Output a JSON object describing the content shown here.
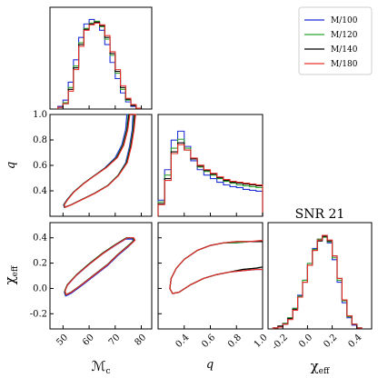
{
  "chart_data": {
    "type": "corner",
    "title": "SNR 21",
    "parameters": [
      {
        "key": "mc",
        "label": "ℳ",
        "sub": "c",
        "range": [
          45,
          84
        ],
        "ticks": [
          50,
          60,
          70,
          80
        ]
      },
      {
        "key": "q",
        "label": "q",
        "sub": "",
        "range": [
          0.2,
          1.0
        ],
        "ticks": [
          0.4,
          0.6,
          0.8,
          1.0
        ]
      },
      {
        "key": "chi",
        "label": "χ",
        "sub": "eff",
        "range": [
          -0.32,
          0.52
        ],
        "ticks": [
          -0.2,
          0.0,
          0.2,
          0.4
        ]
      }
    ],
    "series": [
      {
        "name": "M/100",
        "color": "#1f2fd6"
      },
      {
        "name": "M/120",
        "color": "#2ca02c"
      },
      {
        "name": "M/140",
        "color": "#000000"
      },
      {
        "name": "M/180",
        "color": "#e8302a"
      }
    ],
    "histograms": {
      "mc": {
        "bin_edges": [
          48,
          50,
          52,
          54,
          56,
          58,
          60,
          62,
          64,
          66,
          68,
          70,
          72,
          74,
          76,
          78,
          80
        ],
        "counts": [
          [
            0.03,
            0.1,
            0.3,
            0.55,
            0.8,
            0.95,
            1.0,
            0.96,
            0.88,
            0.72,
            0.52,
            0.34,
            0.18,
            0.08,
            0.03,
            0.01
          ],
          [
            0.02,
            0.07,
            0.24,
            0.48,
            0.74,
            0.9,
            0.96,
            0.98,
            0.92,
            0.78,
            0.6,
            0.4,
            0.22,
            0.1,
            0.04,
            0.01
          ],
          [
            0.02,
            0.06,
            0.22,
            0.46,
            0.72,
            0.89,
            0.95,
            0.97,
            0.93,
            0.8,
            0.62,
            0.42,
            0.24,
            0.11,
            0.04,
            0.01
          ],
          [
            0.02,
            0.06,
            0.2,
            0.44,
            0.7,
            0.88,
            0.94,
            0.96,
            0.94,
            0.82,
            0.64,
            0.44,
            0.26,
            0.12,
            0.05,
            0.01
          ]
        ]
      },
      "q": {
        "bin_edges": [
          0.2,
          0.25,
          0.3,
          0.35,
          0.4,
          0.45,
          0.5,
          0.55,
          0.6,
          0.65,
          0.7,
          0.75,
          0.8,
          0.85,
          0.9,
          0.95,
          1.0
        ],
        "counts": [
          [
            0.18,
            0.52,
            0.85,
            0.95,
            0.78,
            0.62,
            0.52,
            0.46,
            0.42,
            0.38,
            0.35,
            0.33,
            0.32,
            0.3,
            0.29,
            0.28
          ],
          [
            0.16,
            0.46,
            0.76,
            0.86,
            0.76,
            0.64,
            0.55,
            0.5,
            0.46,
            0.42,
            0.39,
            0.37,
            0.35,
            0.34,
            0.33,
            0.32
          ],
          [
            0.14,
            0.42,
            0.72,
            0.82,
            0.74,
            0.64,
            0.56,
            0.51,
            0.47,
            0.43,
            0.4,
            0.38,
            0.37,
            0.36,
            0.35,
            0.34
          ],
          [
            0.13,
            0.4,
            0.7,
            0.8,
            0.74,
            0.65,
            0.57,
            0.52,
            0.48,
            0.44,
            0.41,
            0.39,
            0.38,
            0.37,
            0.36,
            0.35
          ]
        ]
      },
      "chi": {
        "bin_edges": [
          -0.28,
          -0.24,
          -0.2,
          -0.16,
          -0.12,
          -0.08,
          -0.04,
          0.0,
          0.04,
          0.08,
          0.12,
          0.16,
          0.2,
          0.24,
          0.28,
          0.32,
          0.36,
          0.4,
          0.44
        ],
        "counts": [
          [
            0.01,
            0.03,
            0.06,
            0.12,
            0.22,
            0.36,
            0.52,
            0.7,
            0.86,
            0.96,
            1.0,
            0.92,
            0.74,
            0.5,
            0.28,
            0.12,
            0.04,
            0.01
          ],
          [
            0.01,
            0.03,
            0.06,
            0.12,
            0.22,
            0.35,
            0.52,
            0.7,
            0.85,
            0.96,
            0.98,
            0.93,
            0.76,
            0.52,
            0.3,
            0.13,
            0.05,
            0.01
          ],
          [
            0.01,
            0.03,
            0.05,
            0.11,
            0.21,
            0.34,
            0.5,
            0.68,
            0.84,
            0.94,
            0.99,
            0.94,
            0.78,
            0.54,
            0.31,
            0.14,
            0.05,
            0.01
          ],
          [
            0.01,
            0.02,
            0.05,
            0.1,
            0.2,
            0.34,
            0.5,
            0.68,
            0.84,
            0.95,
            1.0,
            0.95,
            0.78,
            0.54,
            0.31,
            0.14,
            0.05,
            0.01
          ]
        ]
      }
    },
    "contours": {
      "q_vs_mc": [
        [
          [
            50.5,
            0.27
          ],
          [
            53,
            0.29
          ],
          [
            57,
            0.33
          ],
          [
            62,
            0.38
          ],
          [
            67,
            0.44
          ],
          [
            71,
            0.52
          ],
          [
            74,
            0.62
          ],
          [
            75.5,
            0.75
          ],
          [
            76.5,
            0.88
          ],
          [
            76.8,
            1.0
          ],
          [
            74.5,
            1.0
          ],
          [
            74,
            0.88
          ],
          [
            72.5,
            0.76
          ],
          [
            70,
            0.66
          ],
          [
            66,
            0.58
          ],
          [
            62,
            0.52
          ],
          [
            58,
            0.46
          ],
          [
            54,
            0.39
          ],
          [
            51.5,
            0.33
          ],
          [
            50.2,
            0.29
          ],
          [
            50.5,
            0.27
          ]
        ],
        [
          [
            50.6,
            0.27
          ],
          [
            53,
            0.29
          ],
          [
            57,
            0.33
          ],
          [
            62,
            0.38
          ],
          [
            67,
            0.44
          ],
          [
            71,
            0.52
          ],
          [
            74.2,
            0.62
          ],
          [
            75.8,
            0.75
          ],
          [
            76.8,
            0.88
          ],
          [
            77.2,
            1.0
          ],
          [
            75,
            1.0
          ],
          [
            74.4,
            0.88
          ],
          [
            72.9,
            0.76
          ],
          [
            70.4,
            0.66
          ],
          [
            66.2,
            0.58
          ],
          [
            62,
            0.52
          ],
          [
            58,
            0.46
          ],
          [
            54,
            0.39
          ],
          [
            51.6,
            0.33
          ],
          [
            50.3,
            0.29
          ],
          [
            50.6,
            0.27
          ]
        ],
        [
          [
            50.7,
            0.27
          ],
          [
            53.1,
            0.29
          ],
          [
            57.1,
            0.33
          ],
          [
            62.1,
            0.38
          ],
          [
            67.1,
            0.44
          ],
          [
            71.2,
            0.52
          ],
          [
            74.4,
            0.62
          ],
          [
            76,
            0.75
          ],
          [
            77,
            0.88
          ],
          [
            77.5,
            1.0
          ],
          [
            75.3,
            1.0
          ],
          [
            74.6,
            0.88
          ],
          [
            73.1,
            0.76
          ],
          [
            70.6,
            0.66
          ],
          [
            66.3,
            0.58
          ],
          [
            62.1,
            0.52
          ],
          [
            58.1,
            0.46
          ],
          [
            54.1,
            0.39
          ],
          [
            51.7,
            0.33
          ],
          [
            50.4,
            0.29
          ],
          [
            50.7,
            0.27
          ]
        ],
        [
          [
            50.8,
            0.27
          ],
          [
            53.2,
            0.29
          ],
          [
            57.2,
            0.33
          ],
          [
            62.2,
            0.38
          ],
          [
            67.2,
            0.44
          ],
          [
            71.3,
            0.52
          ],
          [
            74.6,
            0.62
          ],
          [
            76.2,
            0.75
          ],
          [
            77.2,
            0.88
          ],
          [
            77.8,
            1.0
          ],
          [
            75.6,
            1.0
          ],
          [
            74.8,
            0.88
          ],
          [
            73.3,
            0.76
          ],
          [
            70.8,
            0.66
          ],
          [
            66.5,
            0.58
          ],
          [
            62.2,
            0.52
          ],
          [
            58.2,
            0.46
          ],
          [
            54.2,
            0.39
          ],
          [
            51.8,
            0.33
          ],
          [
            50.5,
            0.29
          ],
          [
            50.8,
            0.27
          ]
        ]
      ],
      "chi_vs_mc": [
        [
          [
            51,
            -0.06
          ],
          [
            53,
            -0.04
          ],
          [
            57,
            0.02
          ],
          [
            62,
            0.1
          ],
          [
            67,
            0.18
          ],
          [
            71,
            0.26
          ],
          [
            75,
            0.33
          ],
          [
            77,
            0.37
          ],
          [
            76.5,
            0.39
          ],
          [
            74,
            0.39
          ],
          [
            70,
            0.34
          ],
          [
            65,
            0.27
          ],
          [
            60,
            0.19
          ],
          [
            55,
            0.1
          ],
          [
            51.5,
            0.02
          ],
          [
            50.5,
            -0.03
          ],
          [
            51,
            -0.06
          ]
        ],
        [
          [
            51,
            -0.05
          ],
          [
            53,
            -0.03
          ],
          [
            57,
            0.03
          ],
          [
            62,
            0.11
          ],
          [
            67,
            0.19
          ],
          [
            71,
            0.27
          ],
          [
            75,
            0.34
          ],
          [
            77.2,
            0.38
          ],
          [
            76.7,
            0.4
          ],
          [
            74.2,
            0.4
          ],
          [
            70.2,
            0.35
          ],
          [
            65.2,
            0.28
          ],
          [
            60.2,
            0.2
          ],
          [
            55.2,
            0.11
          ],
          [
            51.6,
            0.03
          ],
          [
            50.6,
            -0.02
          ],
          [
            51,
            -0.05
          ]
        ],
        [
          [
            51.1,
            -0.05
          ],
          [
            53.1,
            -0.03
          ],
          [
            57.1,
            0.03
          ],
          [
            62.1,
            0.11
          ],
          [
            67.1,
            0.19
          ],
          [
            71.1,
            0.27
          ],
          [
            75.2,
            0.34
          ],
          [
            77.4,
            0.38
          ],
          [
            76.9,
            0.4
          ],
          [
            74.4,
            0.4
          ],
          [
            70.4,
            0.35
          ],
          [
            65.4,
            0.28
          ],
          [
            60.4,
            0.2
          ],
          [
            55.3,
            0.11
          ],
          [
            51.7,
            0.03
          ],
          [
            50.7,
            -0.02
          ],
          [
            51.1,
            -0.05
          ]
        ],
        [
          [
            51.2,
            -0.05
          ],
          [
            53.2,
            -0.03
          ],
          [
            57.2,
            0.03
          ],
          [
            62.2,
            0.11
          ],
          [
            67.2,
            0.19
          ],
          [
            71.2,
            0.27
          ],
          [
            75.4,
            0.34
          ],
          [
            77.6,
            0.38
          ],
          [
            77.1,
            0.4
          ],
          [
            74.6,
            0.4
          ],
          [
            70.6,
            0.35
          ],
          [
            65.6,
            0.28
          ],
          [
            60.6,
            0.2
          ],
          [
            55.4,
            0.11
          ],
          [
            51.8,
            0.03
          ],
          [
            50.8,
            -0.02
          ],
          [
            51.2,
            -0.05
          ]
        ]
      ],
      "chi_vs_q": [
        [
          [
            1.0,
            0.37
          ],
          [
            0.9,
            0.37
          ],
          [
            0.8,
            0.36
          ],
          [
            0.7,
            0.36
          ],
          [
            0.6,
            0.34
          ],
          [
            0.5,
            0.3
          ],
          [
            0.4,
            0.23
          ],
          [
            0.34,
            0.16
          ],
          [
            0.3,
            0.08
          ],
          [
            0.29,
            0.0
          ],
          [
            0.31,
            -0.04
          ],
          [
            0.36,
            -0.03
          ],
          [
            0.45,
            0.03
          ],
          [
            0.55,
            0.08
          ],
          [
            0.65,
            0.11
          ],
          [
            0.75,
            0.13
          ],
          [
            0.85,
            0.14
          ],
          [
            0.95,
            0.15
          ],
          [
            1.0,
            0.15
          ]
        ],
        [
          [
            1.0,
            0.37
          ],
          [
            0.9,
            0.37
          ],
          [
            0.8,
            0.36
          ],
          [
            0.7,
            0.36
          ],
          [
            0.6,
            0.34
          ],
          [
            0.5,
            0.3
          ],
          [
            0.4,
            0.23
          ],
          [
            0.34,
            0.16
          ],
          [
            0.3,
            0.08
          ],
          [
            0.29,
            0.0
          ],
          [
            0.31,
            -0.04
          ],
          [
            0.36,
            -0.03
          ],
          [
            0.45,
            0.03
          ],
          [
            0.55,
            0.08
          ],
          [
            0.65,
            0.11
          ],
          [
            0.75,
            0.13
          ],
          [
            0.85,
            0.15
          ],
          [
            0.95,
            0.16
          ],
          [
            1.0,
            0.17
          ]
        ],
        [
          [
            1.0,
            0.37
          ],
          [
            0.9,
            0.37
          ],
          [
            0.8,
            0.37
          ],
          [
            0.7,
            0.36
          ],
          [
            0.6,
            0.34
          ],
          [
            0.5,
            0.3
          ],
          [
            0.4,
            0.23
          ],
          [
            0.34,
            0.16
          ],
          [
            0.3,
            0.08
          ],
          [
            0.29,
            0.0
          ],
          [
            0.31,
            -0.04
          ],
          [
            0.36,
            -0.03
          ],
          [
            0.45,
            0.03
          ],
          [
            0.55,
            0.08
          ],
          [
            0.65,
            0.11
          ],
          [
            0.75,
            0.13
          ],
          [
            0.85,
            0.15
          ],
          [
            0.95,
            0.16
          ],
          [
            1.0,
            0.17
          ]
        ],
        [
          [
            1.0,
            0.38
          ],
          [
            0.9,
            0.37
          ],
          [
            0.8,
            0.37
          ],
          [
            0.7,
            0.36
          ],
          [
            0.6,
            0.34
          ],
          [
            0.5,
            0.3
          ],
          [
            0.4,
            0.23
          ],
          [
            0.34,
            0.16
          ],
          [
            0.3,
            0.08
          ],
          [
            0.29,
            0.0
          ],
          [
            0.31,
            -0.04
          ],
          [
            0.36,
            -0.03
          ],
          [
            0.45,
            0.03
          ],
          [
            0.55,
            0.08
          ],
          [
            0.65,
            0.11
          ],
          [
            0.75,
            0.13
          ],
          [
            0.85,
            0.14
          ],
          [
            0.95,
            0.15
          ],
          [
            1.0,
            0.15
          ]
        ]
      ]
    },
    "legend_position": "top-right",
    "grid": false
  }
}
